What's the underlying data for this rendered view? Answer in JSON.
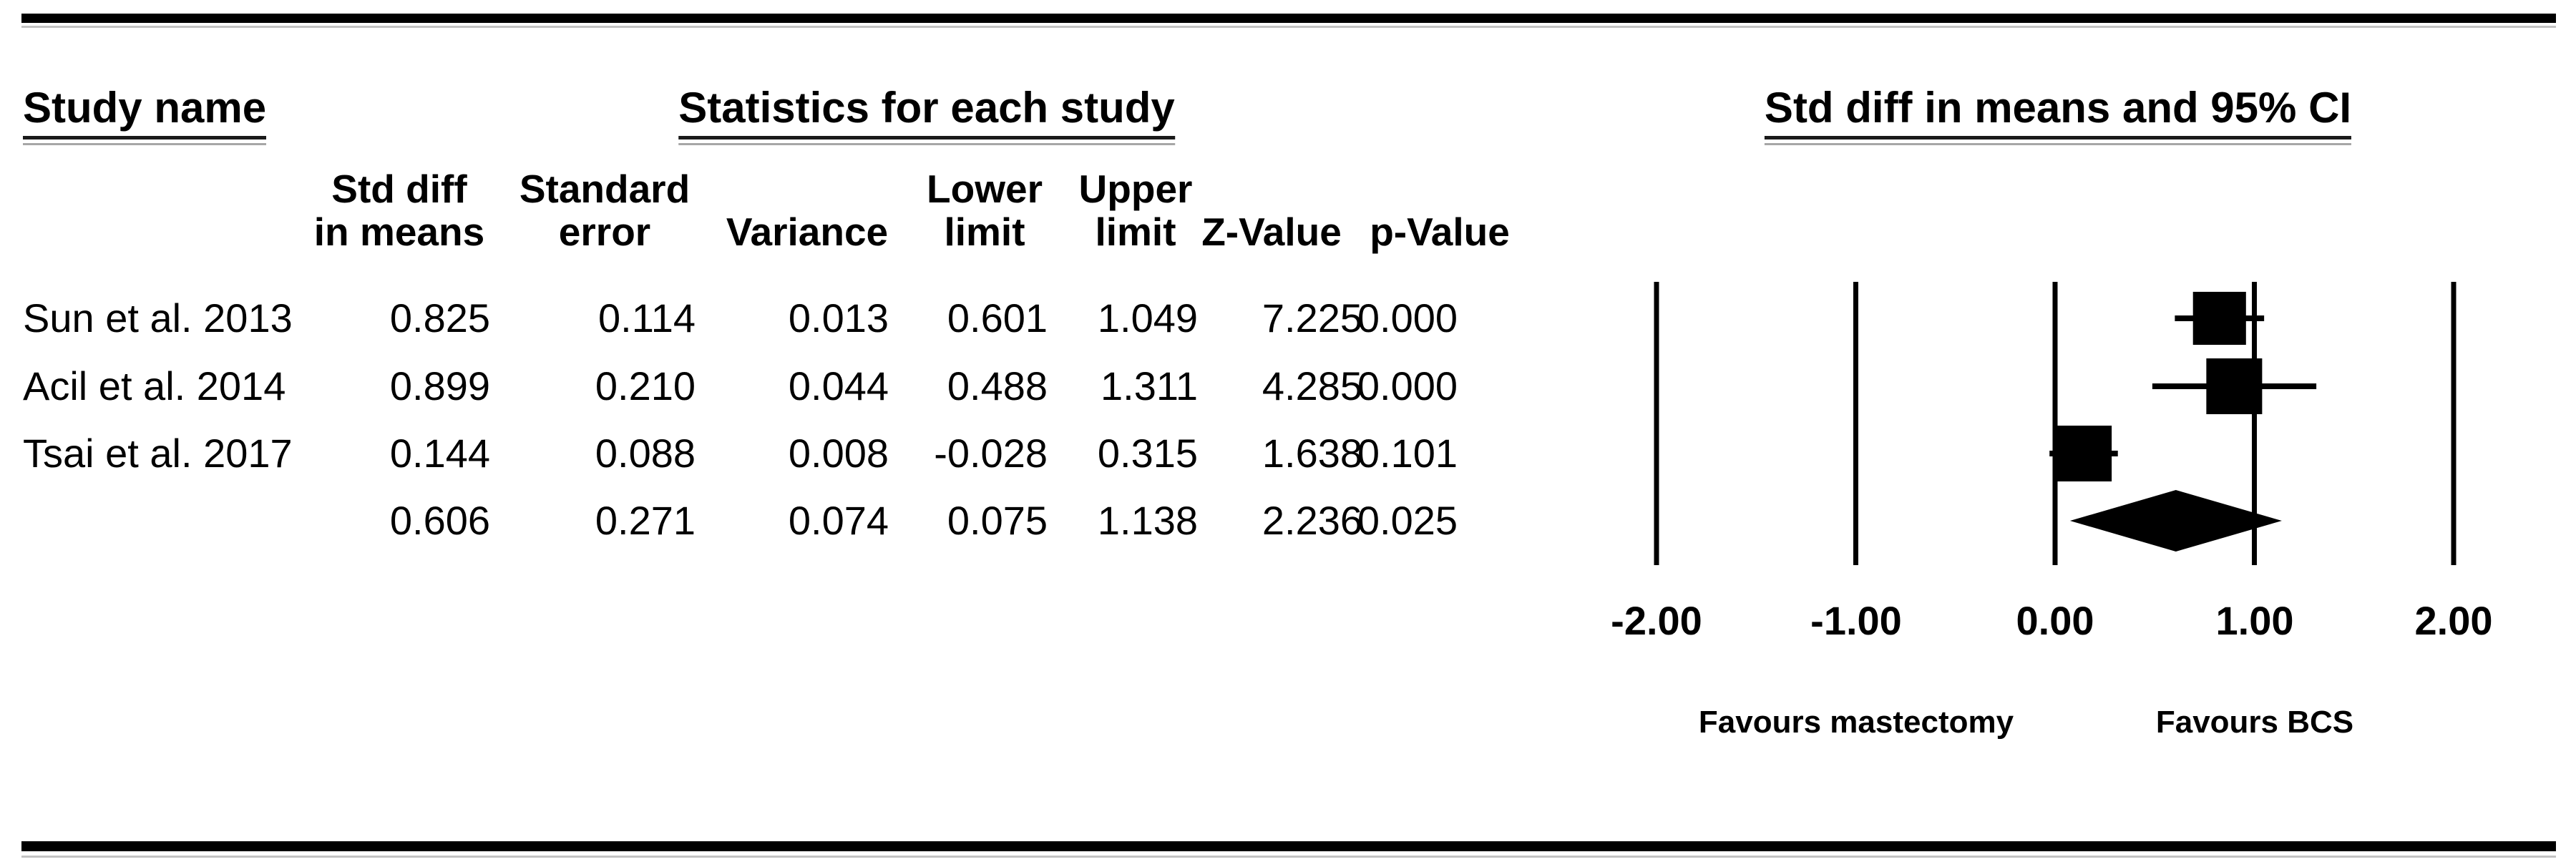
{
  "headers": {
    "study": "Study name",
    "statistics": "Statistics for each study",
    "plot": "Std diff in means and 95% CI"
  },
  "table": {
    "columns": [
      {
        "line1": "Std diff",
        "line2": "in means"
      },
      {
        "line1": "Standard",
        "line2": "error"
      },
      {
        "line1": "",
        "line2": "Variance"
      },
      {
        "line1": "Lower",
        "line2": "limit"
      },
      {
        "line1": "Upper",
        "line2": "limit"
      },
      {
        "line1": "",
        "line2": "Z-Value"
      },
      {
        "line1": "",
        "line2": "p-Value"
      }
    ],
    "rows": [
      {
        "study": "Sun et al. 2013",
        "values": [
          "0.825",
          "0.114",
          "0.013",
          "0.601",
          "1.049",
          "7.225",
          "0.000"
        ]
      },
      {
        "study": "Acil et al. 2014",
        "values": [
          "0.899",
          "0.210",
          "0.044",
          "0.488",
          "1.311",
          "4.285",
          "0.000"
        ]
      },
      {
        "study": "Tsai et al. 2017",
        "values": [
          "0.144",
          "0.088",
          "0.008",
          "-0.028",
          "0.315",
          "1.638",
          "0.101"
        ]
      },
      {
        "study": "",
        "values": [
          "0.606",
          "0.271",
          "0.074",
          "0.075",
          "1.138",
          "2.236",
          "0.025"
        ]
      }
    ]
  },
  "colors": {
    "ink": "#000000"
  },
  "chart_data": {
    "type": "forest",
    "effect_measure": "Std diff in means",
    "title": "Std diff in means and 95% CI",
    "xlim": [
      -2,
      2
    ],
    "x_ticks": [
      -2,
      -1,
      0,
      1,
      2
    ],
    "x_tick_labels": [
      "-2.00",
      "-1.00",
      "0.00",
      "1.00",
      "2.00"
    ],
    "grid": true,
    "studies": [
      {
        "name": "Sun et al. 2013",
        "estimate": 0.825,
        "ci_lower": 0.601,
        "ci_upper": 1.049,
        "weight_rel": 0.95
      },
      {
        "name": "Acil et al. 2014",
        "estimate": 0.899,
        "ci_lower": 0.488,
        "ci_upper": 1.311,
        "weight_rel": 1.0
      },
      {
        "name": "Tsai et al. 2017",
        "estimate": 0.144,
        "ci_lower": -0.028,
        "ci_upper": 0.315,
        "weight_rel": 1.0
      }
    ],
    "summary": {
      "estimate": 0.606,
      "ci_lower": 0.075,
      "ci_upper": 1.138
    },
    "favours_left": "Favours mastectomy",
    "favours_right": "Favours BCS"
  }
}
